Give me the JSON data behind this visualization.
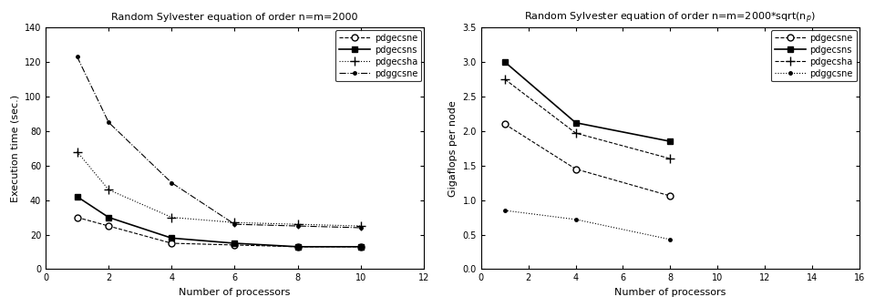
{
  "left": {
    "title": "Random Sylvester equation of order n=m=2000",
    "xlabel": "Number of processors",
    "ylabel": "Execution time (sec.)",
    "xlim": [
      0,
      12
    ],
    "ylim": [
      0,
      140
    ],
    "xticks": [
      0,
      2,
      4,
      6,
      8,
      10,
      12
    ],
    "yticks": [
      0,
      20,
      40,
      60,
      80,
      100,
      120,
      140
    ],
    "series": [
      {
        "label": "pdgecsne",
        "x": [
          1,
          2,
          4,
          6,
          8,
          10
        ],
        "y": [
          30,
          25,
          15,
          14,
          13,
          13
        ],
        "marker": "o",
        "linestyle": "--",
        "color": "black",
        "markersize": 5,
        "markerfacecolor": "white",
        "linewidth": 0.8
      },
      {
        "label": "pdgecsns",
        "x": [
          1,
          2,
          4,
          6,
          8,
          10
        ],
        "y": [
          42,
          30,
          18,
          15,
          13,
          13
        ],
        "marker": "s",
        "linestyle": "-",
        "color": "black",
        "markersize": 5,
        "markerfacecolor": "black",
        "linewidth": 1.2
      },
      {
        "label": "pdgecsha",
        "x": [
          1,
          2,
          4,
          6,
          8,
          10
        ],
        "y": [
          68,
          46,
          30,
          27,
          26,
          25
        ],
        "marker": "+",
        "linestyle": ":",
        "color": "black",
        "markersize": 7,
        "markerfacecolor": "black",
        "linewidth": 0.8
      },
      {
        "label": "pdggcsne",
        "x": [
          1,
          2,
          4,
          6,
          8,
          10
        ],
        "y": [
          123,
          85,
          50,
          26,
          25,
          24
        ],
        "marker": ".",
        "linestyle": "-.",
        "color": "black",
        "markersize": 5,
        "markerfacecolor": "black",
        "linewidth": 0.8
      }
    ]
  },
  "right": {
    "xlabel": "Number of processors",
    "ylabel": "Gigaflops per node",
    "xlim": [
      0,
      16
    ],
    "ylim": [
      0,
      3.5
    ],
    "xticks": [
      0,
      2,
      4,
      6,
      8,
      10,
      12,
      14,
      16
    ],
    "yticks": [
      0,
      0.5,
      1.0,
      1.5,
      2.0,
      2.5,
      3.0,
      3.5
    ],
    "series": [
      {
        "label": "pdgecsne",
        "x": [
          1,
          4,
          8
        ],
        "y": [
          2.1,
          1.45,
          1.06
        ],
        "marker": "o",
        "linestyle": "--",
        "color": "black",
        "markersize": 5,
        "markerfacecolor": "white",
        "linewidth": 0.8
      },
      {
        "label": "pdgecsns",
        "x": [
          1,
          4,
          8
        ],
        "y": [
          3.0,
          2.12,
          1.85
        ],
        "marker": "s",
        "linestyle": "-",
        "color": "black",
        "markersize": 5,
        "markerfacecolor": "black",
        "linewidth": 1.2
      },
      {
        "label": "pdgecsha",
        "x": [
          1,
          4,
          8
        ],
        "y": [
          2.75,
          1.97,
          1.6
        ],
        "marker": "+",
        "linestyle": "--",
        "color": "black",
        "markersize": 7,
        "markerfacecolor": "black",
        "linewidth": 0.8
      },
      {
        "label": "pdggcsne",
        "x": [
          1,
          4,
          8
        ],
        "y": [
          0.85,
          0.72,
          0.43
        ],
        "marker": ".",
        "linestyle": ":",
        "color": "black",
        "markersize": 5,
        "markerfacecolor": "black",
        "linewidth": 0.8
      }
    ]
  }
}
